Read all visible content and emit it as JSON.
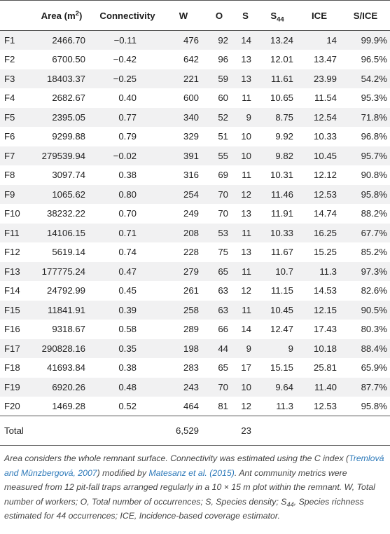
{
  "table": {
    "headers": {
      "id": "",
      "area": "Area (m",
      "area_sup": "2",
      "area_close": ")",
      "connectivity": "Connectivity",
      "w": "W",
      "o": "O",
      "s": "S",
      "s44_base": "S",
      "s44_sub": "44",
      "ice": "ICE",
      "sice": "S/ICE"
    },
    "rows": [
      {
        "id": "F1",
        "area": "2466.70",
        "connectivity": "−0.11",
        "w": "476",
        "o": "92",
        "s": "14",
        "s44": "13.24",
        "ice": "14",
        "sice": "99.9%"
      },
      {
        "id": "F2",
        "area": "6700.50",
        "connectivity": "−0.42",
        "w": "642",
        "o": "96",
        "s": "13",
        "s44": "12.01",
        "ice": "13.47",
        "sice": "96.5%"
      },
      {
        "id": "F3",
        "area": "18403.37",
        "connectivity": "−0.25",
        "w": "221",
        "o": "59",
        "s": "13",
        "s44": "11.61",
        "ice": "23.99",
        "sice": "54.2%"
      },
      {
        "id": "F4",
        "area": "2682.67",
        "connectivity": "0.40",
        "w": "600",
        "o": "60",
        "s": "11",
        "s44": "10.65",
        "ice": "11.54",
        "sice": "95.3%"
      },
      {
        "id": "F5",
        "area": "2395.05",
        "connectivity": "0.77",
        "w": "340",
        "o": "52",
        "s": "9",
        "s44": "8.75",
        "ice": "12.54",
        "sice": "71.8%"
      },
      {
        "id": "F6",
        "area": "9299.88",
        "connectivity": "0.79",
        "w": "329",
        "o": "51",
        "s": "10",
        "s44": "9.92",
        "ice": "10.33",
        "sice": "96.8%"
      },
      {
        "id": "F7",
        "area": "279539.94",
        "connectivity": "−0.02",
        "w": "391",
        "o": "55",
        "s": "10",
        "s44": "9.82",
        "ice": "10.45",
        "sice": "95.7%"
      },
      {
        "id": "F8",
        "area": "3097.74",
        "connectivity": "0.38",
        "w": "316",
        "o": "69",
        "s": "11",
        "s44": "10.31",
        "ice": "12.12",
        "sice": "90.8%"
      },
      {
        "id": "F9",
        "area": "1065.62",
        "connectivity": "0.80",
        "w": "254",
        "o": "70",
        "s": "12",
        "s44": "11.46",
        "ice": "12.53",
        "sice": "95.8%"
      },
      {
        "id": "F10",
        "area": "38232.22",
        "connectivity": "0.70",
        "w": "249",
        "o": "70",
        "s": "13",
        "s44": "11.91",
        "ice": "14.74",
        "sice": "88.2%"
      },
      {
        "id": "F11",
        "area": "14106.15",
        "connectivity": "0.71",
        "w": "208",
        "o": "53",
        "s": "11",
        "s44": "10.33",
        "ice": "16.25",
        "sice": "67.7%"
      },
      {
        "id": "F12",
        "area": "5619.14",
        "connectivity": "0.74",
        "w": "228",
        "o": "75",
        "s": "13",
        "s44": "11.67",
        "ice": "15.25",
        "sice": "85.2%"
      },
      {
        "id": "F13",
        "area": "177775.24",
        "connectivity": "0.47",
        "w": "279",
        "o": "65",
        "s": "11",
        "s44": "10.7",
        "ice": "11.3",
        "sice": "97.3%"
      },
      {
        "id": "F14",
        "area": "24792.99",
        "connectivity": "0.45",
        "w": "261",
        "o": "63",
        "s": "12",
        "s44": "11.15",
        "ice": "14.53",
        "sice": "82.6%"
      },
      {
        "id": "F15",
        "area": "11841.91",
        "connectivity": "0.39",
        "w": "258",
        "o": "63",
        "s": "11",
        "s44": "10.45",
        "ice": "12.15",
        "sice": "90.5%"
      },
      {
        "id": "F16",
        "area": "9318.67",
        "connectivity": "0.58",
        "w": "289",
        "o": "66",
        "s": "14",
        "s44": "12.47",
        "ice": "17.43",
        "sice": "80.3%"
      },
      {
        "id": "F17",
        "area": "290828.16",
        "connectivity": "0.35",
        "w": "198",
        "o": "44",
        "s": "9",
        "s44": "9",
        "ice": "10.18",
        "sice": "88.4%"
      },
      {
        "id": "F18",
        "area": "41693.84",
        "connectivity": "0.38",
        "w": "283",
        "o": "65",
        "s": "17",
        "s44": "15.15",
        "ice": "25.81",
        "sice": "65.9%"
      },
      {
        "id": "F19",
        "area": "6920.26",
        "connectivity": "0.48",
        "w": "243",
        "o": "70",
        "s": "10",
        "s44": "9.64",
        "ice": "11.40",
        "sice": "87.7%"
      },
      {
        "id": "F20",
        "area": "1469.28",
        "connectivity": "0.52",
        "w": "464",
        "o": "81",
        "s": "12",
        "s44": "11.3",
        "ice": "12.53",
        "sice": "95.8%"
      }
    ],
    "total": {
      "label": "Total",
      "w": "6,529",
      "s": "23"
    }
  },
  "footnote": {
    "p1": "Area considers the whole remnant surface. Connectivity was estimated using the C index (",
    "ref1": "Tremlová and Münzbergová, 2007",
    "p2": ") modified by ",
    "ref2": "Matesanz et al. (2015)",
    "p3": ". Ant community metrics were measured from 12 pit-fall traps arranged regularly in a 10 × 15 m plot within the remnant. W, Total number of workers; O, Total number of occurrences; S, Species density; S",
    "s44_sub": "44",
    "p4": ", Species richness estimated for 44 occurrences; ICE, Incidence-based coverage estimator."
  }
}
